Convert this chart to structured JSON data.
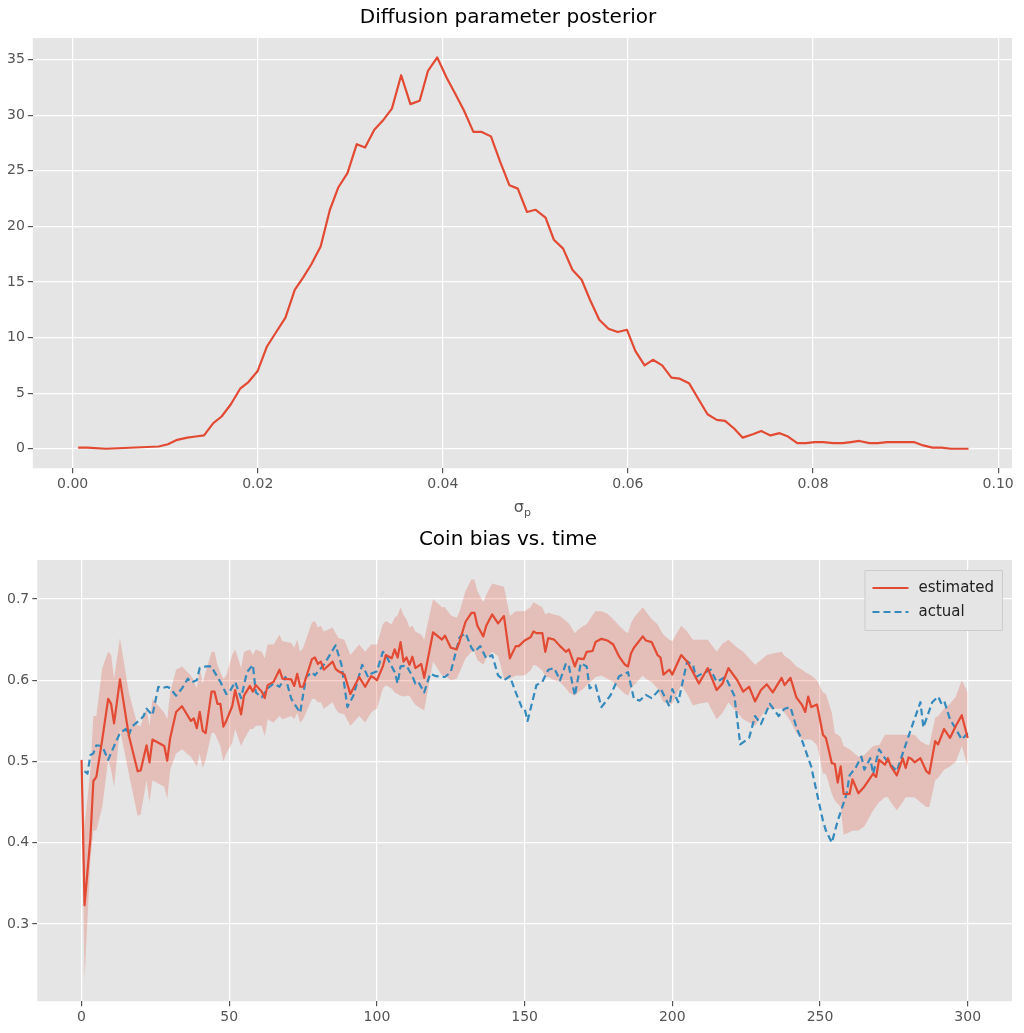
{
  "chart_data": [
    {
      "type": "line",
      "title": "Diffusion parameter posterior",
      "xlabel": "σ$_{p}$",
      "xlim": [
        -0.0043,
        0.1015
      ],
      "ylim": [
        -1.75,
        36.95
      ],
      "xticks": [
        {
          "value": 0,
          "label": "0.00"
        },
        {
          "value": 0.02,
          "label": "0.02"
        },
        {
          "value": 0.04,
          "label": "0.04"
        },
        {
          "value": 0.06,
          "label": "0.06"
        },
        {
          "value": 0.08,
          "label": "0.08"
        },
        {
          "value": 0.1,
          "label": "0.10"
        }
      ],
      "yticks": [
        0,
        5,
        10,
        15,
        20,
        25,
        30,
        35
      ],
      "grid": true,
      "series": [
        {
          "color": "#e24a33",
          "x": [
            0.0006,
            0.0016,
            0.0036,
            0.0093,
            0.0103,
            0.0113,
            0.0124,
            0.0133,
            0.0142,
            0.0152,
            0.0161,
            0.0171,
            0.0181,
            0.019,
            0.02,
            0.021,
            0.022,
            0.023,
            0.024,
            0.0249,
            0.0258,
            0.0268,
            0.0278,
            0.0287,
            0.0297,
            0.0307,
            0.0316,
            0.0326,
            0.0335,
            0.0345,
            0.0355,
            0.0365,
            0.0375,
            0.0384,
            0.0394,
            0.0404,
            0.0413,
            0.0423,
            0.0433,
            0.0442,
            0.0452,
            0.0462,
            0.0472,
            0.0481,
            0.0491,
            0.05,
            0.0511,
            0.052,
            0.053,
            0.054,
            0.055,
            0.0559,
            0.0569,
            0.0579,
            0.0589,
            0.0599,
            0.0608,
            0.0618,
            0.0627,
            0.0637,
            0.0647,
            0.0656,
            0.0666,
            0.0676,
            0.0686,
            0.0696,
            0.0705,
            0.0715,
            0.0724,
            0.0735,
            0.0744,
            0.0754,
            0.0764,
            0.0773,
            0.0783,
            0.0792,
            0.0802,
            0.0811,
            0.0822,
            0.0832,
            0.0841,
            0.085,
            0.0861,
            0.087,
            0.088,
            0.089,
            0.0899,
            0.0909,
            0.0919,
            0.0929,
            0.0939,
            0.0949,
            0.0958,
            0.0968
          ],
          "values": [
            0.1,
            0.1,
            0,
            0.2,
            0.4,
            0.8,
            1.0,
            1.1,
            1.2,
            2.3,
            2.9,
            4.0,
            5.4,
            6.0,
            7.0,
            9.2,
            10.5,
            11.8,
            14.3,
            15.4,
            16.6,
            18.2,
            21.5,
            23.5,
            24.8,
            27.4,
            27.1,
            28.7,
            29.5,
            30.6,
            33.6,
            31.0,
            31.3,
            34.0,
            35.2,
            33.4,
            32.0,
            30.4,
            28.5,
            28.5,
            28.1,
            25.8,
            23.7,
            23.4,
            21.3,
            21.5,
            20.8,
            18.8,
            18.0,
            16.1,
            15.2,
            13.4,
            11.6,
            10.8,
            10.5,
            10.7,
            8.8,
            7.5,
            8.0,
            7.5,
            6.4,
            6.3,
            5.9,
            4.5,
            3.1,
            2.6,
            2.5,
            1.8,
            1.0,
            1.3,
            1.6,
            1.2,
            1.4,
            1.1,
            0.5,
            0.5,
            0.6,
            0.6,
            0.5,
            0.5,
            0.6,
            0.7,
            0.5,
            0.5,
            0.6,
            0.6,
            0.6,
            0.6,
            0.3,
            0.1,
            0.1,
            0,
            0,
            0
          ]
        }
      ]
    },
    {
      "type": "line",
      "title": "Coin bias vs. time",
      "xlim": [
        -15,
        315
      ],
      "ylim": [
        0.205,
        0.748
      ],
      "xticks": [
        0,
        50,
        100,
        150,
        200,
        250,
        300
      ],
      "yticks": [
        0.3,
        0.4,
        0.5,
        0.6,
        0.7
      ],
      "grid": true,
      "legend": "top right",
      "series": [
        {
          "name": "estimated",
          "color": "#e24a33",
          "line_style": "solid",
          "x": [
            0,
            1,
            3,
            4,
            5,
            7,
            9,
            10,
            11,
            13,
            16,
            19,
            20,
            22,
            23,
            24,
            28,
            29,
            30,
            32,
            34,
            37,
            38,
            39,
            40,
            41,
            42,
            44,
            45,
            46,
            47,
            48,
            49,
            51,
            52,
            54,
            55,
            57,
            58,
            59,
            61,
            62,
            63,
            65,
            67,
            68,
            71,
            72,
            73,
            74,
            75,
            78,
            79,
            80,
            81,
            82,
            85,
            86,
            87,
            89,
            91,
            94,
            96,
            98,
            99,
            100,
            102,
            103,
            105,
            106,
            107,
            108,
            109,
            110,
            111,
            112,
            113,
            115,
            116,
            119,
            122,
            123,
            125,
            127,
            128,
            130,
            132,
            133,
            134,
            136,
            137,
            139,
            141,
            143,
            145,
            147,
            148,
            150,
            152,
            153,
            154,
            156,
            157,
            158,
            160,
            162,
            164,
            165,
            167,
            168,
            170,
            171,
            173,
            174,
            176,
            178,
            180,
            182,
            184,
            185,
            186,
            187,
            190,
            191,
            193,
            195,
            196,
            197,
            199,
            200,
            203,
            205,
            207,
            209,
            212,
            215,
            217,
            219,
            222,
            224,
            226,
            228,
            230,
            232,
            234,
            237,
            238,
            240,
            242,
            244,
            245,
            246,
            247,
            249,
            251,
            252,
            254,
            255,
            256,
            257,
            258,
            260,
            261,
            263,
            265,
            268,
            269,
            270,
            272,
            273,
            274,
            276,
            278,
            279,
            280,
            281,
            282,
            284,
            286,
            287,
            289,
            290,
            292,
            294,
            296,
            298,
            300
          ],
          "values": [
            0.502,
            0.323,
            0.406,
            0.476,
            0.481,
            0.527,
            0.577,
            0.571,
            0.547,
            0.601,
            0.532,
            0.488,
            0.489,
            0.52,
            0.499,
            0.527,
            0.519,
            0.501,
            0.529,
            0.561,
            0.568,
            0.55,
            0.553,
            0.541,
            0.561,
            0.538,
            0.535,
            0.586,
            0.586,
            0.571,
            0.571,
            0.543,
            0.55,
            0.568,
            0.588,
            0.558,
            0.581,
            0.593,
            0.586,
            0.594,
            0.586,
            0.578,
            0.594,
            0.598,
            0.613,
            0.602,
            0.601,
            0.593,
            0.608,
            0.592,
            0.592,
            0.626,
            0.628,
            0.62,
            0.623,
            0.613,
            0.623,
            0.614,
            0.611,
            0.607,
            0.583,
            0.604,
            0.592,
            0.605,
            0.603,
            0.6,
            0.617,
            0.631,
            0.627,
            0.638,
            0.628,
            0.647,
            0.623,
            0.628,
            0.619,
            0.629,
            0.615,
            0.62,
            0.603,
            0.659,
            0.65,
            0.655,
            0.64,
            0.638,
            0.648,
            0.672,
            0.683,
            0.683,
            0.667,
            0.654,
            0.667,
            0.681,
            0.67,
            0.679,
            0.627,
            0.642,
            0.642,
            0.649,
            0.653,
            0.66,
            0.658,
            0.658,
            0.635,
            0.652,
            0.65,
            0.642,
            0.635,
            0.638,
            0.617,
            0.627,
            0.626,
            0.635,
            0.636,
            0.647,
            0.651,
            0.649,
            0.644,
            0.629,
            0.619,
            0.617,
            0.633,
            0.64,
            0.654,
            0.649,
            0.647,
            0.631,
            0.628,
            0.607,
            0.613,
            0.607,
            0.631,
            0.623,
            0.61,
            0.596,
            0.615,
            0.588,
            0.596,
            0.615,
            0.6,
            0.586,
            0.592,
            0.574,
            0.588,
            0.595,
            0.585,
            0.603,
            0.594,
            0.603,
            0.579,
            0.569,
            0.561,
            0.58,
            0.567,
            0.57,
            0.533,
            0.529,
            0.498,
            0.497,
            0.474,
            0.494,
            0.46,
            0.46,
            0.478,
            0.461,
            0.469,
            0.485,
            0.481,
            0.502,
            0.496,
            0.504,
            0.494,
            0.483,
            0.504,
            0.492,
            0.505,
            0.503,
            0.499,
            0.504,
            0.488,
            0.485,
            0.525,
            0.521,
            0.54,
            0.529,
            0.544,
            0.557,
            0.529
          ],
          "upper": [
            0.502,
            0.42,
            0.49,
            0.556,
            0.556,
            0.615,
            0.635,
            0.631,
            0.602,
            0.652,
            0.585,
            0.544,
            0.544,
            0.565,
            0.544,
            0.577,
            0.56,
            0.552,
            0.585,
            0.613,
            0.617,
            0.606,
            0.6,
            0.59,
            0.615,
            0.596,
            0.61,
            0.635,
            0.635,
            0.619,
            0.61,
            0.602,
            0.606,
            0.631,
            0.638,
            0.615,
            0.635,
            0.638,
            0.631,
            0.638,
            0.635,
            0.627,
            0.644,
            0.644,
            0.656,
            0.648,
            0.646,
            0.64,
            0.65,
            0.635,
            0.64,
            0.671,
            0.673,
            0.665,
            0.667,
            0.66,
            0.665,
            0.658,
            0.652,
            0.65,
            0.631,
            0.644,
            0.635,
            0.644,
            0.644,
            0.644,
            0.669,
            0.673,
            0.669,
            0.677,
            0.68,
            0.69,
            0.68,
            0.675,
            0.665,
            0.667,
            0.66,
            0.656,
            0.65,
            0.7,
            0.69,
            0.69,
            0.68,
            0.677,
            0.685,
            0.71,
            0.724,
            0.724,
            0.71,
            0.696,
            0.705,
            0.719,
            0.717,
            0.715,
            0.679,
            0.685,
            0.685,
            0.685,
            0.69,
            0.696,
            0.694,
            0.69,
            0.681,
            0.683,
            0.681,
            0.679,
            0.673,
            0.67,
            0.658,
            0.662,
            0.667,
            0.669,
            0.68,
            0.685,
            0.685,
            0.682,
            0.675,
            0.667,
            0.66,
            0.658,
            0.67,
            0.677,
            0.69,
            0.685,
            0.675,
            0.669,
            0.662,
            0.656,
            0.65,
            0.648,
            0.667,
            0.66,
            0.65,
            0.65,
            0.65,
            0.635,
            0.645,
            0.65,
            0.64,
            0.635,
            0.627,
            0.619,
            0.625,
            0.631,
            0.633,
            0.635,
            0.63,
            0.625,
            0.617,
            0.613,
            0.61,
            0.608,
            0.606,
            0.6,
            0.585,
            0.583,
            0.56,
            0.535,
            0.533,
            0.53,
            0.519,
            0.515,
            0.512,
            0.506,
            0.508,
            0.519,
            0.52,
            0.52,
            0.533,
            0.533,
            0.533,
            0.533,
            0.533,
            0.533,
            0.533,
            0.533,
            0.533,
            0.525,
            0.521,
            0.52,
            0.554,
            0.556,
            0.565,
            0.571,
            0.58,
            0.6,
            0.585
          ],
          "lower": [
            0.502,
            0.232,
            0.38,
            0.415,
            0.415,
            0.444,
            0.502,
            0.49,
            0.469,
            0.54,
            0.485,
            0.433,
            0.435,
            0.477,
            0.45,
            0.477,
            0.469,
            0.454,
            0.49,
            0.51,
            0.515,
            0.506,
            0.5,
            0.494,
            0.51,
            0.492,
            0.502,
            0.535,
            0.535,
            0.527,
            0.519,
            0.5,
            0.51,
            0.523,
            0.54,
            0.519,
            0.527,
            0.54,
            0.54,
            0.544,
            0.544,
            0.531,
            0.552,
            0.548,
            0.556,
            0.552,
            0.556,
            0.552,
            0.56,
            0.548,
            0.552,
            0.577,
            0.577,
            0.573,
            0.573,
            0.565,
            0.573,
            0.565,
            0.56,
            0.558,
            0.544,
            0.556,
            0.548,
            0.56,
            0.563,
            0.565,
            0.59,
            0.594,
            0.59,
            0.585,
            0.583,
            0.581,
            0.58,
            0.581,
            0.581,
            0.575,
            0.57,
            0.565,
            0.563,
            0.623,
            0.606,
            0.606,
            0.6,
            0.602,
            0.61,
            0.627,
            0.635,
            0.635,
            0.625,
            0.619,
            0.627,
            0.635,
            0.63,
            0.602,
            0.602,
            0.606,
            0.606,
            0.606,
            0.612,
            0.619,
            0.618,
            0.612,
            0.604,
            0.604,
            0.6,
            0.598,
            0.59,
            0.585,
            0.581,
            0.585,
            0.59,
            0.594,
            0.6,
            0.604,
            0.606,
            0.602,
            0.598,
            0.59,
            0.583,
            0.581,
            0.59,
            0.594,
            0.606,
            0.602,
            0.598,
            0.59,
            0.58,
            0.573,
            0.571,
            0.571,
            0.594,
            0.583,
            0.569,
            0.571,
            0.573,
            0.552,
            0.56,
            0.573,
            0.56,
            0.552,
            0.548,
            0.544,
            0.555,
            0.565,
            0.565,
            0.565,
            0.56,
            0.55,
            0.535,
            0.527,
            0.527,
            0.527,
            0.527,
            0.52,
            0.485,
            0.485,
            0.46,
            0.452,
            0.448,
            0.444,
            0.41,
            0.413,
            0.415,
            0.415,
            0.42,
            0.44,
            0.445,
            0.45,
            0.456,
            0.456,
            0.45,
            0.44,
            0.45,
            0.456,
            0.456,
            0.456,
            0.456,
            0.45,
            0.444,
            0.444,
            0.477,
            0.48,
            0.49,
            0.494,
            0.5,
            0.519,
            0.494
          ]
        },
        {
          "name": "actual",
          "color": "#348abd",
          "line_style": "dashed",
          "x": [
            1,
            2,
            3,
            4,
            5,
            7,
            9,
            11,
            13,
            15,
            16,
            17,
            20,
            21,
            22,
            24,
            26,
            27,
            29,
            30,
            32,
            34,
            36,
            37,
            39,
            40,
            42,
            44,
            45,
            47,
            49,
            50,
            52,
            54,
            56,
            58,
            59,
            61,
            63,
            65,
            67,
            69,
            71,
            74,
            76,
            78,
            79,
            82,
            84,
            86,
            88,
            90,
            92,
            95,
            97,
            98,
            100,
            102,
            103,
            106,
            107,
            108,
            110,
            112,
            113,
            114,
            116,
            118,
            120,
            123,
            125,
            127,
            128,
            130,
            132,
            133,
            135,
            137,
            139,
            141,
            143,
            145,
            147,
            149,
            150,
            151,
            154,
            156,
            158,
            160,
            162,
            164,
            165,
            167,
            169,
            171,
            172,
            174,
            176,
            179,
            182,
            185,
            187,
            189,
            191,
            193,
            196,
            199,
            200,
            202,
            205,
            207,
            208,
            210,
            213,
            215,
            218,
            221,
            223,
            226,
            228,
            230,
            233,
            236,
            238,
            240,
            242,
            244,
            247,
            248,
            251,
            252,
            254,
            256,
            259,
            260,
            262,
            264,
            265,
            267,
            268,
            270,
            272,
            275,
            276,
            278,
            281,
            284,
            285,
            288,
            290,
            291,
            292,
            294,
            296,
            298,
            300
          ],
          "values": [
            0.488,
            0.485,
            0.508,
            0.51,
            0.52,
            0.519,
            0.502,
            0.519,
            0.535,
            0.54,
            0.532,
            0.543,
            0.552,
            0.556,
            0.565,
            0.557,
            0.592,
            0.59,
            0.592,
            0.59,
            0.581,
            0.59,
            0.602,
            0.597,
            0.6,
            0.615,
            0.617,
            0.617,
            0.61,
            0.598,
            0.583,
            0.585,
            0.598,
            0.578,
            0.61,
            0.619,
            0.585,
            0.579,
            0.59,
            0.596,
            0.592,
            0.604,
            0.577,
            0.56,
            0.604,
            0.61,
            0.606,
            0.619,
            0.631,
            0.643,
            0.619,
            0.567,
            0.581,
            0.619,
            0.604,
            0.608,
            0.611,
            0.635,
            0.631,
            0.61,
            0.596,
            0.617,
            0.618,
            0.605,
            0.596,
            0.598,
            0.585,
            0.608,
            0.605,
            0.604,
            0.61,
            0.639,
            0.653,
            0.658,
            0.64,
            0.635,
            0.642,
            0.627,
            0.631,
            0.606,
            0.6,
            0.605,
            0.585,
            0.567,
            0.565,
            0.55,
            0.594,
            0.598,
            0.613,
            0.615,
            0.6,
            0.621,
            0.617,
            0.581,
            0.621,
            0.617,
            0.59,
            0.594,
            0.567,
            0.581,
            0.605,
            0.61,
            0.577,
            0.575,
            0.582,
            0.578,
            0.59,
            0.568,
            0.589,
            0.573,
            0.623,
            0.619,
            0.604,
            0.608,
            0.613,
            0.598,
            0.604,
            0.581,
            0.521,
            0.529,
            0.556,
            0.546,
            0.571,
            0.556,
            0.565,
            0.567,
            0.542,
            0.525,
            0.494,
            0.477,
            0.427,
            0.415,
            0.4,
            0.427,
            0.46,
            0.483,
            0.492,
            0.506,
            0.49,
            0.504,
            0.485,
            0.515,
            0.504,
            0.492,
            0.488,
            0.51,
            0.542,
            0.573,
            0.542,
            0.573,
            0.58,
            0.572,
            0.575,
            0.552,
            0.54,
            0.527,
            0.535
          ]
        }
      ]
    }
  ]
}
